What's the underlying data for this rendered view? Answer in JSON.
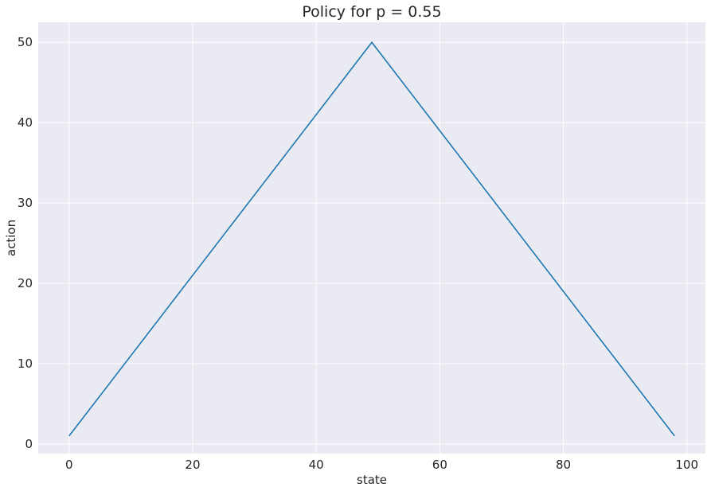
{
  "chart_data": {
    "type": "line",
    "title": "Policy for p = 0.55",
    "xlabel": "state",
    "ylabel": "action",
    "xlim": [
      -5,
      103
    ],
    "ylim": [
      -1.2,
      52.5
    ],
    "xticks": [
      0,
      20,
      40,
      60,
      80,
      100
    ],
    "yticks": [
      0,
      10,
      20,
      30,
      40,
      50
    ],
    "grid": true,
    "series": [
      {
        "color": "#1f77b4",
        "x": [
          0,
          49,
          98
        ],
        "y": [
          1,
          50,
          1
        ]
      }
    ]
  },
  "colors": {
    "plot_background": "#eaeaf2",
    "gridline": "#ffffff",
    "line": "#1f77b4"
  }
}
